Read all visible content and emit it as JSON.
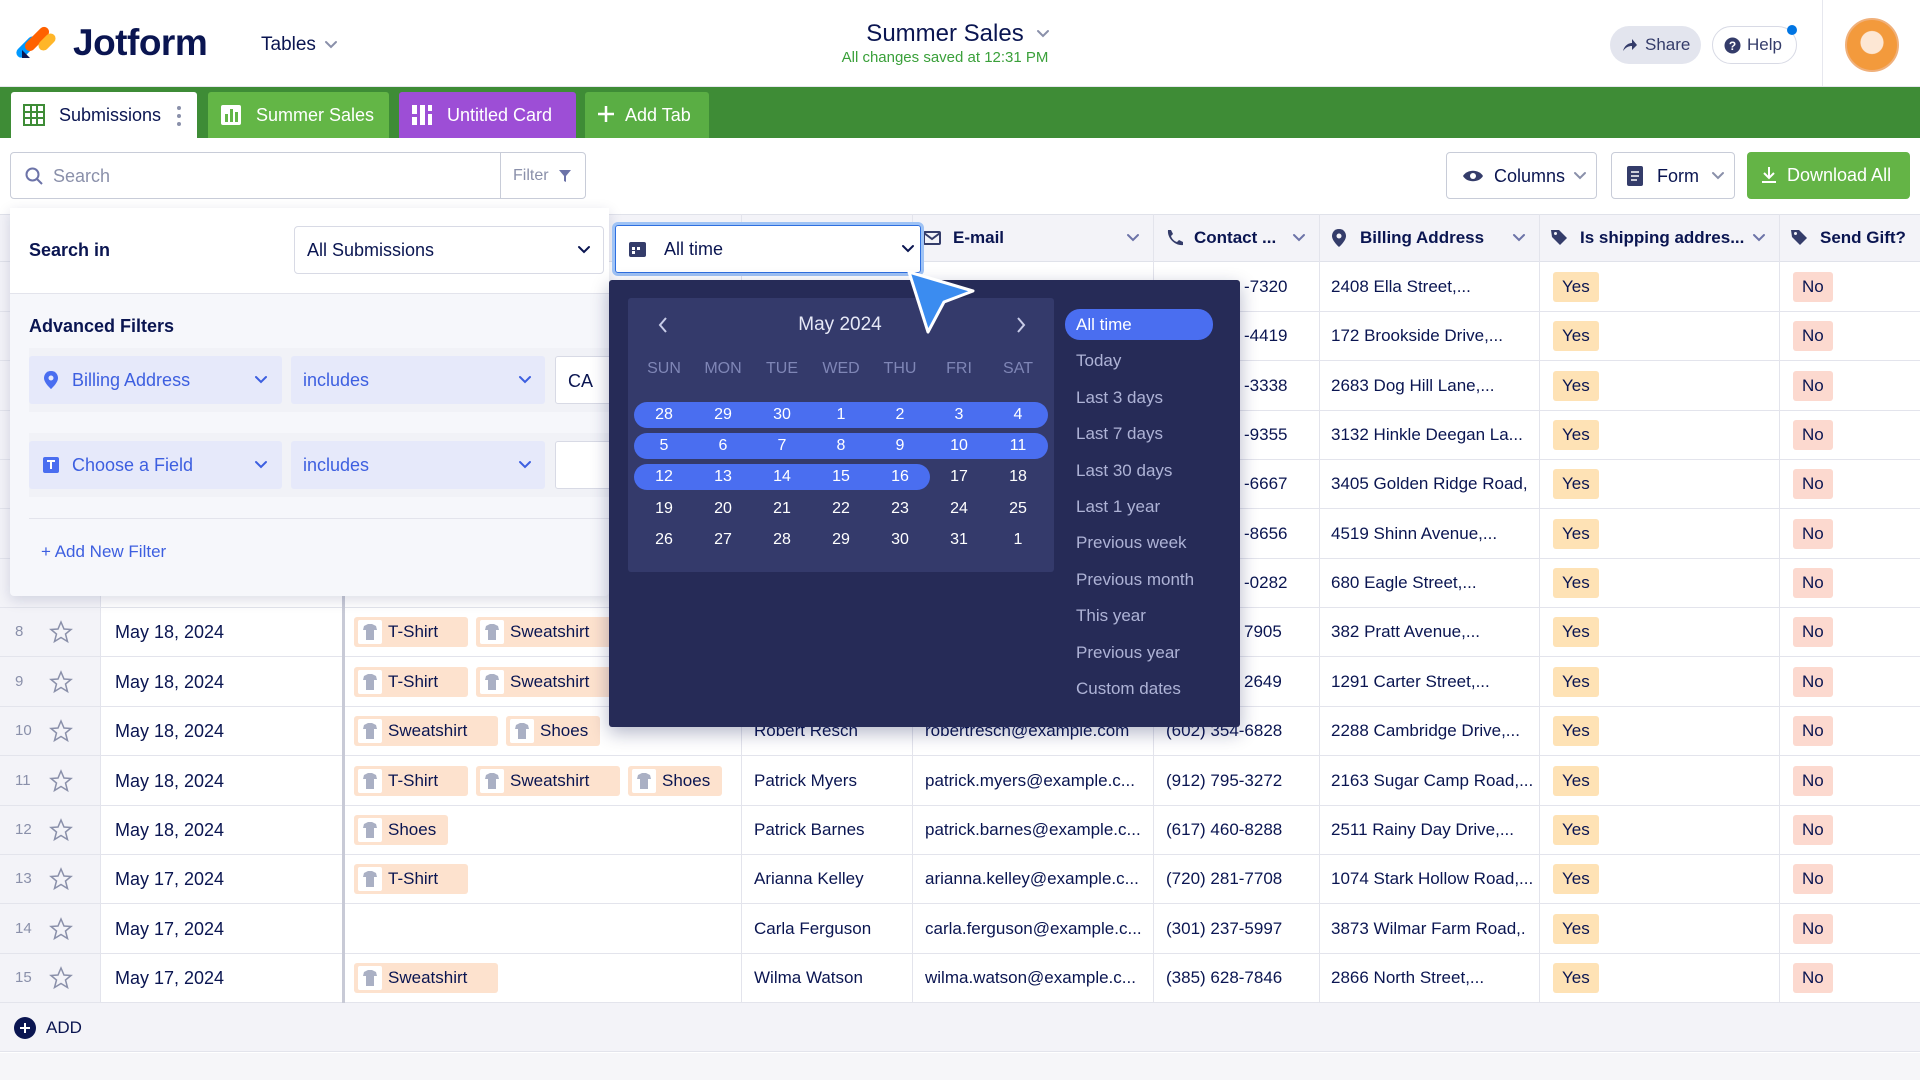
{
  "header": {
    "logo": "Jotform",
    "menu": "Tables",
    "title": "Summer Sales",
    "status": "All changes saved at 12:31 PM",
    "share": "Share",
    "help": "Help"
  },
  "tabs": [
    {
      "label": "Submissions"
    },
    {
      "label": "Summer Sales"
    },
    {
      "label": "Untitled Card"
    },
    {
      "label": "Add Tab"
    }
  ],
  "toolbar": {
    "search": "Search",
    "filter": "Filter",
    "columns": "Columns",
    "form": "Form",
    "download": "Download All"
  },
  "columns": [
    "E-mail",
    "Contact ...",
    "Billing Address",
    "Is shipping addres...",
    "Send Gift?"
  ],
  "rows": [
    {
      "contact": "-7320",
      "billing": "2408 Ella Street,...",
      "shipping": "Yes",
      "gift": "No"
    },
    {
      "contact": "-4419",
      "billing": "172 Brookside Drive,...",
      "shipping": "Yes",
      "gift": "No"
    },
    {
      "contact": "-3338",
      "billing": "2683 Dog Hill Lane,...",
      "shipping": "Yes",
      "gift": "No"
    },
    {
      "contact": "-9355",
      "billing": "3132 Hinkle Deegan La...",
      "shipping": "Yes",
      "gift": "No"
    },
    {
      "contact": "-6667",
      "billing": "3405 Golden Ridge Road,",
      "shipping": "Yes",
      "gift": "No"
    },
    {
      "contact": "-8656",
      "billing": "4519 Shinn Avenue,...",
      "shipping": "Yes",
      "gift": "No"
    },
    {
      "contact": "-0282",
      "billing": "680 Eagle Street,...",
      "shipping": "Yes",
      "gift": "No"
    },
    {
      "num": 8,
      "date": "May 18, 2024",
      "products": [
        "T-Shirt",
        "Sweatshirt"
      ],
      "contact": "7905",
      "billing": "382 Pratt Avenue,...",
      "shipping": "Yes",
      "gift": "No"
    },
    {
      "num": 9,
      "date": "May 18, 2024",
      "products": [
        "T-Shirt",
        "Sweatshirt"
      ],
      "contact": "2649",
      "billing": "1291 Carter Street,...",
      "shipping": "Yes",
      "gift": "No"
    },
    {
      "num": 10,
      "date": "May 18, 2024",
      "products": [
        "Sweatshirt",
        "Shoes"
      ],
      "name": "Robert Resch",
      "email": "robertresch@example.com",
      "contact": "(602) 354-6828",
      "billing": "2288 Cambridge Drive,...",
      "shipping": "Yes",
      "gift": "No"
    },
    {
      "num": 11,
      "date": "May 18, 2024",
      "products": [
        "T-Shirt",
        "Sweatshirt",
        "Shoes"
      ],
      "name": "Patrick Myers",
      "email": "patrick.myers@example.c...",
      "contact": "(912) 795-3272",
      "billing": "2163 Sugar Camp Road,...",
      "shipping": "Yes",
      "gift": "No"
    },
    {
      "num": 12,
      "date": "May 18, 2024",
      "products": [
        "Shoes"
      ],
      "name": "Patrick Barnes",
      "email": "patrick.barnes@example.c...",
      "contact": "(617) 460-8288",
      "billing": "2511 Rainy Day Drive,...",
      "shipping": "Yes",
      "gift": "No"
    },
    {
      "num": 13,
      "date": "May 17, 2024",
      "products": [
        "T-Shirt"
      ],
      "name": "Arianna Kelley",
      "email": "arianna.kelley@example.c...",
      "contact": "(720) 281-7708",
      "billing": "1074 Stark Hollow Road,...",
      "shipping": "Yes",
      "gift": "No"
    },
    {
      "num": 14,
      "date": "May 17, 2024",
      "name": "Carla Ferguson",
      "email": "carla.ferguson@example.c...",
      "contact": "(301) 237-5997",
      "billing": "3873 Wilmar Farm Road,.",
      "shipping": "Yes",
      "gift": "No"
    },
    {
      "num": 15,
      "date": "May 17, 2024",
      "products": [
        "Sweatshirt"
      ],
      "name": "Wilma Watson",
      "email": "wilma.watson@example.c...",
      "contact": "(385) 628-7846",
      "billing": "2866 North Street,...",
      "shipping": "Yes",
      "gift": "No"
    }
  ],
  "add_row": "ADD",
  "filter_panel": {
    "search_in": "Search in",
    "scope": "All Submissions",
    "time": "All time",
    "advanced": "Advanced Filters",
    "filters": [
      {
        "field": "Billing Address",
        "operator": "includes",
        "value": "CA"
      },
      {
        "field": "Choose a Field",
        "operator": "includes"
      }
    ],
    "add_filter": "+ Add New Filter"
  },
  "calendar": {
    "month": "May 2024",
    "weekdays": [
      "SUN",
      "MON",
      "TUE",
      "WED",
      "THU",
      "FRI",
      "SAT"
    ],
    "weeks": [
      [
        28,
        29,
        30,
        1,
        2,
        3,
        4
      ],
      [
        5,
        6,
        7,
        8,
        9,
        10,
        11
      ],
      [
        12,
        13,
        14,
        15,
        16,
        17,
        18
      ],
      [
        19,
        20,
        21,
        22,
        23,
        24,
        25
      ],
      [
        26,
        27,
        28,
        29,
        30,
        31,
        1
      ]
    ],
    "presets": [
      "All time",
      "Today",
      "Last 3 days",
      "Last 7 days",
      "Last 30 days",
      "Last 1 year",
      "Previous week",
      "Previous month",
      "This year",
      "Previous year",
      "Custom dates"
    ]
  }
}
